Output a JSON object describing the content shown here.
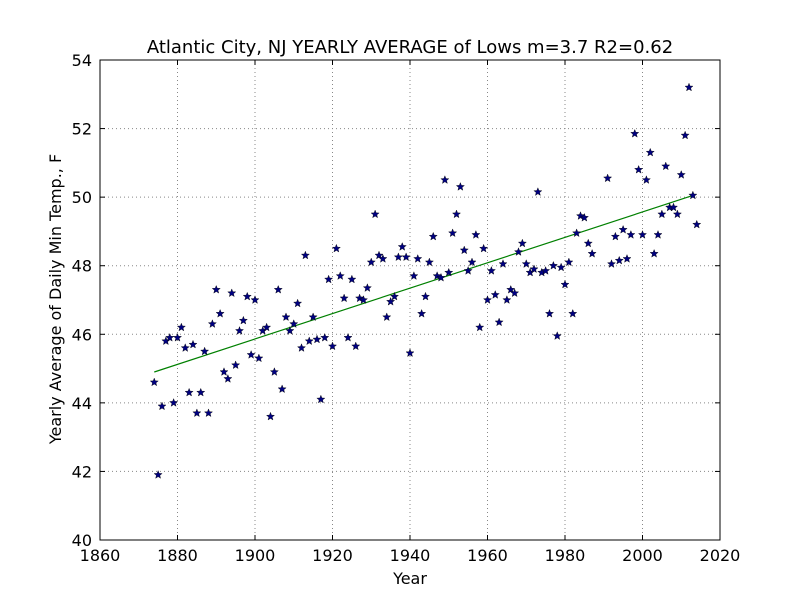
{
  "chart_data": {
    "type": "scatter",
    "title": "Atlantic City, NJ YEARLY AVERAGE of Lows  m=3.7 R2=0.62",
    "xlabel": "Year",
    "ylabel": "Yearly Average of Daily Min Temp., F",
    "xlim": [
      1860,
      2020
    ],
    "ylim": [
      40,
      54
    ],
    "xticks": [
      1860,
      1880,
      1900,
      1920,
      1940,
      1960,
      1980,
      2000,
      2020
    ],
    "yticks": [
      40,
      42,
      44,
      46,
      48,
      50,
      52,
      54
    ],
    "grid": true,
    "marker": "star",
    "colors": {
      "points": "#000080",
      "trend": "#008000",
      "frame": "#000000",
      "grid": "#888888"
    },
    "trend_line": {
      "x": [
        1874,
        2013
      ],
      "y": [
        44.9,
        50.05
      ]
    },
    "points": [
      [
        1874,
        44.6
      ],
      [
        1875,
        41.9
      ],
      [
        1876,
        43.9
      ],
      [
        1877,
        45.8
      ],
      [
        1878,
        45.9
      ],
      [
        1879,
        44.0
      ],
      [
        1880,
        45.9
      ],
      [
        1881,
        46.2
      ],
      [
        1882,
        45.6
      ],
      [
        1883,
        44.3
      ],
      [
        1884,
        45.7
      ],
      [
        1885,
        43.7
      ],
      [
        1886,
        44.3
      ],
      [
        1887,
        45.5
      ],
      [
        1888,
        43.7
      ],
      [
        1889,
        46.3
      ],
      [
        1890,
        47.3
      ],
      [
        1891,
        46.6
      ],
      [
        1892,
        44.9
      ],
      [
        1893,
        44.7
      ],
      [
        1894,
        47.2
      ],
      [
        1895,
        45.1
      ],
      [
        1896,
        46.1
      ],
      [
        1897,
        46.4
      ],
      [
        1898,
        47.1
      ],
      [
        1899,
        45.4
      ],
      [
        1900,
        47.0
      ],
      [
        1901,
        45.3
      ],
      [
        1902,
        46.1
      ],
      [
        1903,
        46.2
      ],
      [
        1904,
        43.6
      ],
      [
        1905,
        44.9
      ],
      [
        1906,
        47.3
      ],
      [
        1907,
        44.4
      ],
      [
        1908,
        46.5
      ],
      [
        1909,
        46.1
      ],
      [
        1910,
        46.3
      ],
      [
        1911,
        46.9
      ],
      [
        1912,
        45.6
      ],
      [
        1913,
        48.3
      ],
      [
        1914,
        45.8
      ],
      [
        1915,
        46.5
      ],
      [
        1916,
        45.85
      ],
      [
        1917,
        44.1
      ],
      [
        1918,
        45.9
      ],
      [
        1919,
        47.6
      ],
      [
        1920,
        45.65
      ],
      [
        1921,
        48.5
      ],
      [
        1922,
        47.7
      ],
      [
        1923,
        47.05
      ],
      [
        1924,
        45.9
      ],
      [
        1925,
        47.6
      ],
      [
        1926,
        45.65
      ],
      [
        1927,
        47.05
      ],
      [
        1928,
        47.0
      ],
      [
        1929,
        47.35
      ],
      [
        1930,
        48.1
      ],
      [
        1931,
        49.5
      ],
      [
        1932,
        48.3
      ],
      [
        1933,
        48.2
      ],
      [
        1934,
        46.5
      ],
      [
        1935,
        46.95
      ],
      [
        1936,
        47.1
      ],
      [
        1937,
        48.25
      ],
      [
        1938,
        48.55
      ],
      [
        1939,
        48.25
      ],
      [
        1940,
        45.45
      ],
      [
        1941,
        47.7
      ],
      [
        1942,
        48.2
      ],
      [
        1943,
        46.6
      ],
      [
        1944,
        47.1
      ],
      [
        1945,
        48.1
      ],
      [
        1946,
        48.85
      ],
      [
        1947,
        47.7
      ],
      [
        1948,
        47.65
      ],
      [
        1949,
        50.5
      ],
      [
        1950,
        47.8
      ],
      [
        1951,
        48.95
      ],
      [
        1952,
        49.5
      ],
      [
        1953,
        50.3
      ],
      [
        1954,
        48.45
      ],
      [
        1955,
        47.85
      ],
      [
        1956,
        48.1
      ],
      [
        1957,
        48.9
      ],
      [
        1958,
        46.2
      ],
      [
        1959,
        48.5
      ],
      [
        1960,
        47.0
      ],
      [
        1961,
        47.85
      ],
      [
        1962,
        47.15
      ],
      [
        1963,
        46.35
      ],
      [
        1964,
        48.05
      ],
      [
        1965,
        47.0
      ],
      [
        1966,
        47.3
      ],
      [
        1967,
        47.2
      ],
      [
        1968,
        48.4
      ],
      [
        1969,
        48.65
      ],
      [
        1970,
        48.05
      ],
      [
        1971,
        47.8
      ],
      [
        1972,
        47.9
      ],
      [
        1973,
        50.15
      ],
      [
        1974,
        47.8
      ],
      [
        1975,
        47.85
      ],
      [
        1976,
        46.6
      ],
      [
        1977,
        48.0
      ],
      [
        1978,
        45.95
      ],
      [
        1979,
        47.95
      ],
      [
        1980,
        47.45
      ],
      [
        1981,
        48.1
      ],
      [
        1982,
        46.6
      ],
      [
        1983,
        48.95
      ],
      [
        1984,
        49.45
      ],
      [
        1985,
        49.4
      ],
      [
        1986,
        48.65
      ],
      [
        1987,
        48.35
      ],
      [
        1991,
        50.55
      ],
      [
        1992,
        48.05
      ],
      [
        1993,
        48.85
      ],
      [
        1994,
        48.15
      ],
      [
        1995,
        49.05
      ],
      [
        1996,
        48.2
      ],
      [
        1997,
        48.9
      ],
      [
        1998,
        51.85
      ],
      [
        1999,
        50.8
      ],
      [
        2000,
        48.9
      ],
      [
        2001,
        50.5
      ],
      [
        2002,
        51.3
      ],
      [
        2003,
        48.35
      ],
      [
        2004,
        48.9
      ],
      [
        2005,
        49.5
      ],
      [
        2006,
        50.9
      ],
      [
        2007,
        49.7
      ],
      [
        2008,
        49.7
      ],
      [
        2009,
        49.5
      ],
      [
        2010,
        50.65
      ],
      [
        2011,
        51.8
      ],
      [
        2012,
        53.2
      ],
      [
        2013,
        50.05
      ],
      [
        2014,
        49.2
      ]
    ]
  }
}
